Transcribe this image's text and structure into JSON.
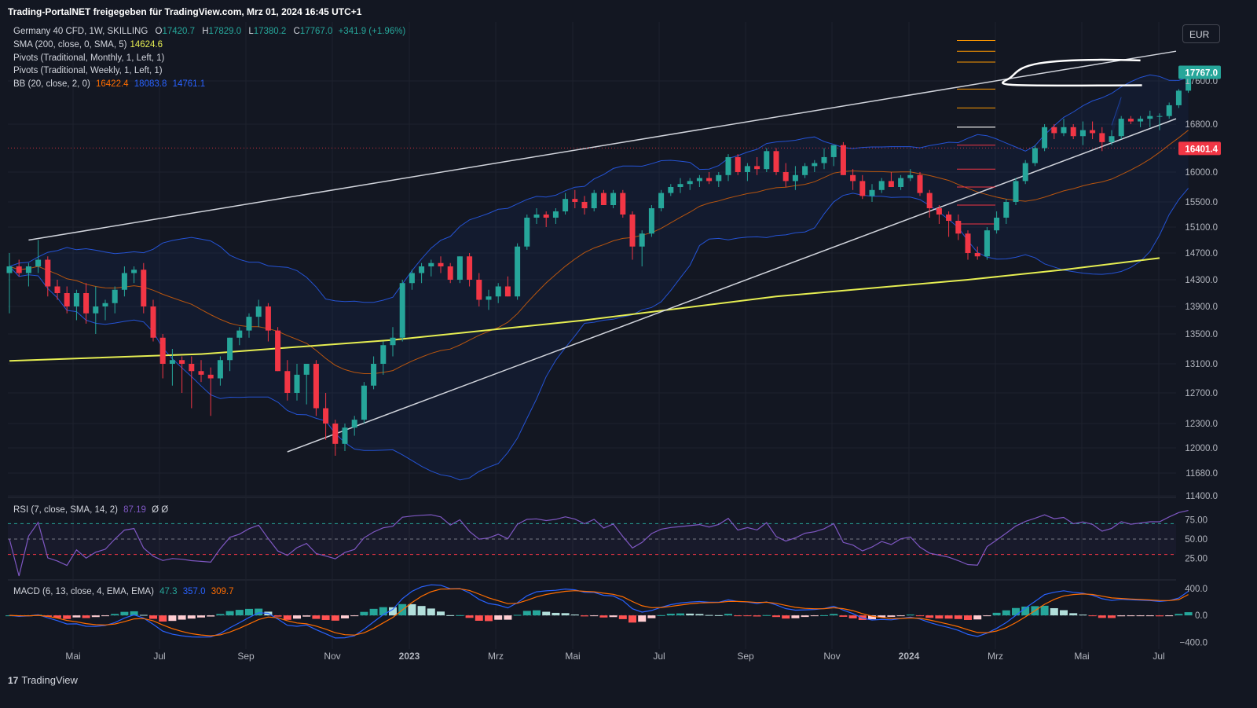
{
  "header": {
    "share_text": "Trading-PortalNET freigegeben für TradingView.com, Mrz 01, 2024 16:45 UTC+1"
  },
  "legend": {
    "symbol": "Germany 40 CFD, 1W, SKILLING",
    "o_label": "O",
    "o": "17420.7",
    "h_label": "H",
    "h": "17829.0",
    "l_label": "L",
    "l": "17380.2",
    "c_label": "C",
    "c": "17767.0",
    "change": "+341.9 (+1.96%)",
    "sma": "SMA (200, close, 0, SMA, 5)",
    "sma_val": "14624.6",
    "pivots_m": "Pivots (Traditional, Monthly, 1, Left, 1)",
    "pivots_w": "Pivots (Traditional, Weekly, 1, Left, 1)",
    "bb": "BB (20, close, 2, 0)",
    "bb_basis": "16422.4",
    "bb_upper": "18083.8",
    "bb_lower": "14761.1"
  },
  "rsi_legend": {
    "label": "RSI (7, close, SMA, 14, 2)",
    "value": "87.19",
    "extra": "Ø Ø"
  },
  "macd_legend": {
    "label": "MACD (6, 13, close, 4, EMA, EMA)",
    "hist": "47.3",
    "macd": "357.0",
    "signal": "309.7"
  },
  "currency": "EUR",
  "footer": {
    "logo_mark": "17",
    "logo_text": "TradingView"
  },
  "colors": {
    "up": "#26a69a",
    "down": "#f23645",
    "sma": "#e6ee52",
    "bb_upper": "#2962ff",
    "bb_basis": "#ff6d00",
    "rsi": "#7e57c2",
    "macd": "#2962ff",
    "signal": "#ff6d00"
  },
  "chart_data": [
    {
      "type": "candlestick",
      "title": "Germany 40 CFD, 1W, SKILLING",
      "ylim": [
        11400,
        18400
      ],
      "price_ticks": [
        17600,
        16800,
        16000,
        15500,
        15100,
        14700,
        14300,
        13900,
        13500,
        13100,
        12700,
        12300,
        12000,
        11680,
        11400
      ],
      "time_labels": [
        "Mai",
        "Jul",
        "Sep",
        "Nov",
        "2023",
        "Mrz",
        "Mai",
        "Jul",
        "Sep",
        "Nov",
        "2024",
        "Mrz",
        "Mai",
        "Jul"
      ],
      "price_badges": {
        "last": "17767.0",
        "marker": "16401.4"
      },
      "candles": [
        [
          14400,
          14700,
          13800,
          14500
        ],
        [
          14500,
          14600,
          14350,
          14400
        ],
        [
          14400,
          14550,
          14200,
          14500
        ],
        [
          14500,
          14900,
          14400,
          14600
        ],
        [
          14600,
          14650,
          14050,
          14200
        ],
        [
          14200,
          14300,
          14000,
          14100
        ],
        [
          14100,
          14200,
          13800,
          13900
        ],
        [
          13900,
          14150,
          13700,
          14100
        ],
        [
          14100,
          14250,
          13650,
          13800
        ],
        [
          13800,
          14200,
          13500,
          13900
        ],
        [
          13900,
          14000,
          13700,
          13950
        ],
        [
          13950,
          14200,
          13800,
          14150
        ],
        [
          14150,
          14500,
          14050,
          14400
        ],
        [
          14400,
          14500,
          14250,
          14450
        ],
        [
          14450,
          14550,
          13800,
          13900
        ],
        [
          13900,
          14000,
          13400,
          13450
        ],
        [
          13450,
          13500,
          12900,
          13100
        ],
        [
          13100,
          13300,
          12800,
          13150
        ],
        [
          13150,
          13200,
          12700,
          13100
        ],
        [
          13100,
          13200,
          12500,
          13000
        ],
        [
          13000,
          13150,
          12850,
          12950
        ],
        [
          12950,
          13050,
          12400,
          12900
        ],
        [
          12900,
          13200,
          12800,
          13150
        ],
        [
          13150,
          13450,
          13000,
          13450
        ],
        [
          13450,
          13600,
          13350,
          13550
        ],
        [
          13550,
          13800,
          13450,
          13750
        ],
        [
          13750,
          14000,
          13600,
          13900
        ],
        [
          13900,
          13950,
          13400,
          13550
        ],
        [
          13550,
          13600,
          13000,
          13000
        ],
        [
          13000,
          13150,
          12600,
          12700
        ],
        [
          12700,
          13100,
          12600,
          12950
        ],
        [
          12950,
          13100,
          12550,
          13100
        ],
        [
          13100,
          13150,
          12400,
          12500
        ],
        [
          12500,
          12700,
          12100,
          12300
        ],
        [
          12300,
          12350,
          11900,
          12050
        ],
        [
          12050,
          12300,
          11960,
          12250
        ],
        [
          12250,
          12400,
          12150,
          12350
        ],
        [
          12350,
          12850,
          12300,
          12800
        ],
        [
          12800,
          13200,
          12750,
          13100
        ],
        [
          13100,
          13400,
          12950,
          13350
        ],
        [
          13350,
          13600,
          13200,
          13450
        ],
        [
          13450,
          14300,
          13400,
          14250
        ],
        [
          14250,
          14450,
          14150,
          14400
        ],
        [
          14400,
          14550,
          14250,
          14500
        ],
        [
          14500,
          14600,
          14350,
          14550
        ],
        [
          14550,
          14650,
          14400,
          14500
        ],
        [
          14500,
          14550,
          14250,
          14300
        ],
        [
          14300,
          14650,
          14250,
          14650
        ],
        [
          14650,
          14700,
          14200,
          14300
        ],
        [
          14300,
          14400,
          13900,
          14000
        ],
        [
          14000,
          14150,
          13850,
          14050
        ],
        [
          14050,
          14250,
          13950,
          14200
        ],
        [
          14200,
          14350,
          14050,
          14050
        ],
        [
          14050,
          14850,
          14000,
          14800
        ],
        [
          14800,
          15300,
          14750,
          15250
        ],
        [
          15250,
          15400,
          15150,
          15300
        ],
        [
          15300,
          15350,
          15100,
          15250
        ],
        [
          15250,
          15400,
          15150,
          15350
        ],
        [
          15350,
          15650,
          15300,
          15550
        ],
        [
          15550,
          15700,
          15400,
          15500
        ],
        [
          15500,
          15600,
          15300,
          15400
        ],
        [
          15400,
          15700,
          15350,
          15650
        ],
        [
          15650,
          15700,
          15450,
          15450
        ],
        [
          15450,
          15700,
          15400,
          15650
        ],
        [
          15650,
          15700,
          15250,
          15300
        ],
        [
          15300,
          15350,
          14600,
          14800
        ],
        [
          14800,
          15050,
          14500,
          15000
        ],
        [
          15000,
          15450,
          14950,
          15400
        ],
        [
          15400,
          15700,
          15350,
          15650
        ],
        [
          15650,
          15800,
          15600,
          15750
        ],
        [
          15750,
          15900,
          15650,
          15800
        ],
        [
          15800,
          15900,
          15700,
          15850
        ],
        [
          15850,
          15950,
          15750,
          15900
        ],
        [
          15900,
          16000,
          15800,
          15850
        ],
        [
          15850,
          16000,
          15750,
          15950
        ],
        [
          15950,
          16300,
          15850,
          16250
        ],
        [
          16250,
          16300,
          15950,
          16000
        ],
        [
          16000,
          16150,
          15850,
          16100
        ],
        [
          16100,
          16250,
          15950,
          16050
        ],
        [
          16050,
          16400,
          16000,
          16350
        ],
        [
          16350,
          16400,
          15950,
          16000
        ],
        [
          16000,
          16150,
          15750,
          15850
        ],
        [
          15850,
          16100,
          15700,
          15950
        ],
        [
          15950,
          16150,
          15900,
          16100
        ],
        [
          16100,
          16200,
          16000,
          16150
        ],
        [
          16150,
          16400,
          16050,
          16250
        ],
        [
          16250,
          16450,
          16100,
          16450
        ],
        [
          16450,
          16500,
          15950,
          15950
        ],
        [
          15950,
          16050,
          15700,
          15850
        ],
        [
          15850,
          15950,
          15550,
          15600
        ],
        [
          15600,
          15800,
          15500,
          15700
        ],
        [
          15700,
          15900,
          15650,
          15850
        ],
        [
          15850,
          16000,
          15750,
          15750
        ],
        [
          15750,
          15950,
          15700,
          15900
        ],
        [
          15900,
          16050,
          15850,
          15950
        ],
        [
          15950,
          16000,
          15600,
          15650
        ],
        [
          15650,
          15700,
          15250,
          15400
        ],
        [
          15400,
          15450,
          15150,
          15300
        ],
        [
          15300,
          15350,
          14950,
          15200
        ],
        [
          15200,
          15300,
          14900,
          15000
        ],
        [
          15000,
          15050,
          14600,
          14700
        ],
        [
          14700,
          14800,
          14600,
          14650
        ],
        [
          14650,
          15100,
          14600,
          15050
        ],
        [
          15050,
          15350,
          15000,
          15250
        ],
        [
          15250,
          15550,
          15150,
          15500
        ],
        [
          15500,
          15900,
          15450,
          15850
        ],
        [
          15850,
          16200,
          15800,
          16150
        ],
        [
          16150,
          16450,
          16100,
          16400
        ],
        [
          16400,
          16800,
          16350,
          16750
        ],
        [
          16750,
          16800,
          16550,
          16650
        ],
        [
          16650,
          16900,
          16600,
          16750
        ],
        [
          16750,
          16800,
          16550,
          16600
        ],
        [
          16600,
          16850,
          16450,
          16700
        ],
        [
          16700,
          16850,
          16550,
          16650
        ],
        [
          16650,
          16750,
          16350,
          16500
        ],
        [
          16500,
          16700,
          16450,
          16600
        ],
        [
          16600,
          16950,
          16550,
          16900
        ],
        [
          16900,
          16950,
          16800,
          16850
        ],
        [
          16850,
          16950,
          16750,
          16900
        ],
        [
          16900,
          17050,
          16750,
          16950
        ],
        [
          16950,
          17000,
          16700,
          16950
        ],
        [
          16950,
          17200,
          16900,
          17150
        ],
        [
          17150,
          17450,
          17100,
          17420
        ],
        [
          17420,
          17829,
          17380,
          17767
        ]
      ]
    },
    {
      "type": "line",
      "title": "RSI (7, close, SMA, 14, 2)",
      "ylim": [
        0,
        100
      ],
      "ticks": [
        75,
        50,
        25
      ],
      "levels": [
        70,
        50,
        30
      ],
      "last": 87.19
    },
    {
      "type": "line",
      "title": "MACD (6, 13, close, 4, EMA, EMA)",
      "ylim": [
        -500,
        480
      ],
      "ticks": [
        400,
        0,
        -400
      ],
      "last_hist": 47.3,
      "last_macd": 357.0,
      "last_signal": 309.7
    }
  ]
}
